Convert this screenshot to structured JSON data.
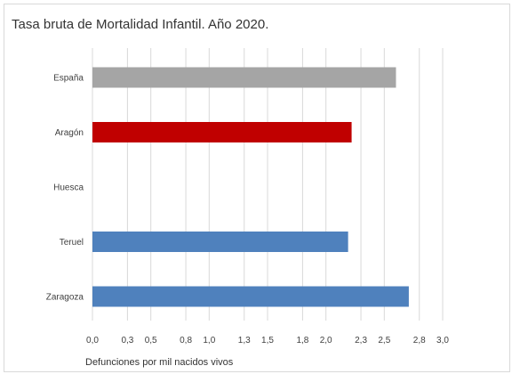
{
  "chart_data": {
    "type": "bar",
    "orientation": "horizontal",
    "title": "Tasa bruta de Mortalidad Infantil. Año 2020.",
    "xlabel": "Defunciones por mil nacidos vivos",
    "ylabel": "",
    "categories": [
      "España",
      "Aragón",
      "Huesca",
      "Teruel",
      "Zaragoza"
    ],
    "values": [
      2.6,
      2.22,
      0,
      2.19,
      2.71
    ],
    "colors": [
      "#a5a5a5",
      "#c00000",
      "#4f81bd",
      "#4f81bd",
      "#4f81bd"
    ],
    "xlim": [
      0,
      3.0
    ],
    "xticks": [
      0,
      0.3,
      0.5,
      0.8,
      1.0,
      1.3,
      1.5,
      1.8,
      2.0,
      2.3,
      2.5,
      2.8,
      3.0
    ],
    "xtick_labels": [
      "0,0",
      "0,3",
      "0,5",
      "0,8",
      "1,0",
      "1,3",
      "1,5",
      "1,8",
      "2,0",
      "2,3",
      "2,5",
      "2,8",
      "3,0"
    ],
    "grid": true,
    "legend": "none"
  }
}
